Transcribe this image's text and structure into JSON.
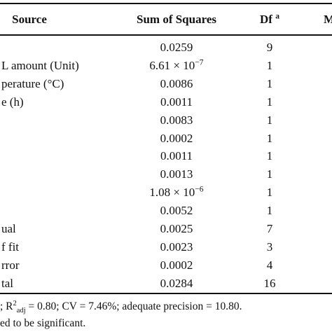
{
  "header": {
    "source": "Source",
    "sum_of_squares": "Sum of Squares",
    "df": "Df",
    "df_note": "a",
    "next": "M"
  },
  "rows": [
    [
      "",
      "0.0259",
      "9"
    ],
    [
      "L amount (Unit)",
      {
        "base": "6.61 × 10",
        "exp": "−7"
      },
      "1"
    ],
    [
      "perature (°C)",
      "0.0086",
      "1"
    ],
    [
      "e (h)",
      "0.0011",
      "1"
    ],
    [
      "",
      "0.0083",
      "1"
    ],
    [
      "",
      "0.0002",
      "1"
    ],
    [
      "",
      "0.0011",
      "1"
    ],
    [
      "",
      "0.0013",
      "1"
    ],
    [
      "",
      {
        "base": "1.08 × 10",
        "exp": "−6"
      },
      "1"
    ],
    [
      "",
      "0.0052",
      "1"
    ],
    [
      "ual",
      "0.0025",
      "7"
    ],
    [
      "f fit",
      "0.0023",
      "3"
    ],
    [
      "rror",
      "0.0002",
      "4"
    ],
    [
      "tal",
      "0.0284",
      "16"
    ]
  ],
  "footnotes": [
    {
      "prefix": "; R",
      "sup": "2",
      "sub": "adj",
      "rest": " = 0.80; CV = 7.46%; adequate precision = 10.80."
    },
    "ed to be significant."
  ]
}
